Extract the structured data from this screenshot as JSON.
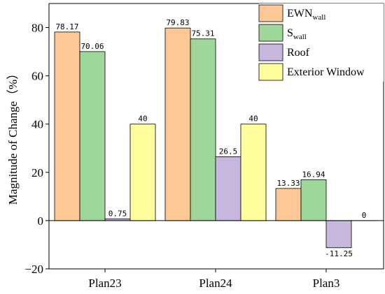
{
  "chart_data": {
    "type": "bar",
    "title": "",
    "xlabel": "",
    "ylabel": "Magnitude of Change（%）",
    "ylim": [
      -20,
      90
    ],
    "yticks": [
      -20,
      0,
      20,
      40,
      60,
      80
    ],
    "grid": false,
    "legend_position": "top-right",
    "categories": [
      "Plan23",
      "Plan24",
      "Plan3"
    ],
    "series": [
      {
        "name": "EWN",
        "name_sub": "wall",
        "color": "#FDC896",
        "values": [
          78.17,
          79.83,
          13.33
        ],
        "labels": [
          "78.17",
          "79.83",
          "13.33"
        ]
      },
      {
        "name": "S",
        "name_sub": "wall",
        "color": "#9FD79A",
        "values": [
          70.06,
          75.31,
          16.94
        ],
        "labels": [
          "70.06",
          "75.31",
          "16.94"
        ]
      },
      {
        "name": "Roof",
        "name_sub": "",
        "color": "#C7B6DD",
        "values": [
          0.75,
          26.5,
          -11.25
        ],
        "labels": [
          "0.75",
          "26.5",
          "-11.25"
        ]
      },
      {
        "name": "Exterior Window",
        "name_sub": "",
        "color": "#FFFF9E",
        "values": [
          40,
          40,
          0
        ],
        "labels": [
          "40",
          "40",
          "0"
        ]
      }
    ]
  }
}
